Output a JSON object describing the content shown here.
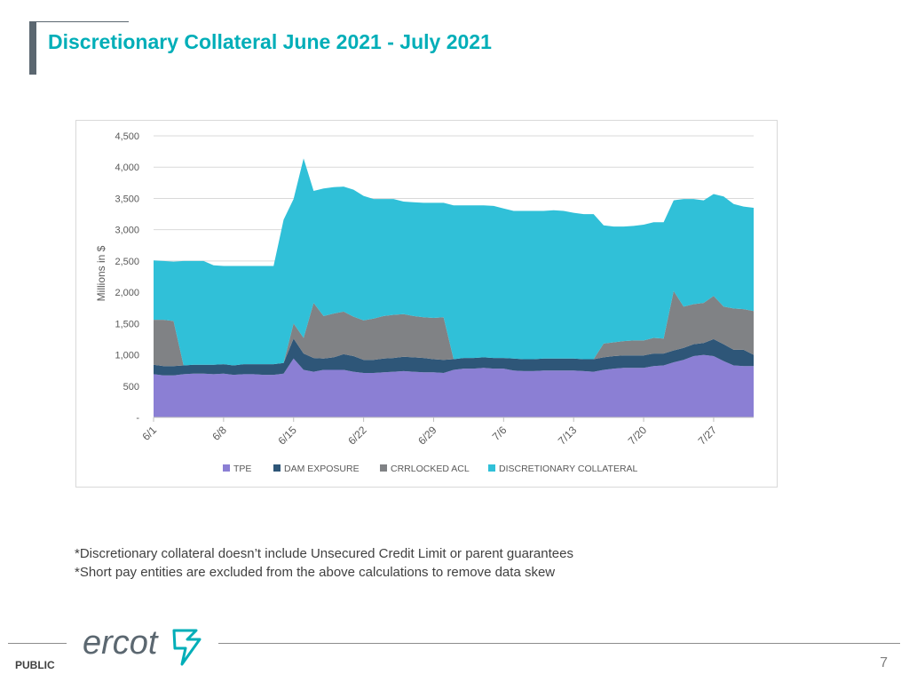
{
  "slide": {
    "title": "Discretionary Collateral June 2021 - July 2021",
    "notes": [
      "*Discretionary collateral doesn’t include Unsecured Credit Limit or parent guarantees",
      "*Short pay entities are excluded from the above calculations to remove data skew"
    ],
    "footer_label": "PUBLIC",
    "page_number": "7",
    "logo_text": "ercot"
  },
  "chart_data": {
    "type": "area",
    "stacked": true,
    "ylabel": "Millions in $",
    "ylim": [
      0,
      4500
    ],
    "yticks": [
      0,
      500,
      1000,
      1500,
      2000,
      2500,
      3000,
      3500,
      4000,
      4500
    ],
    "ytick_labels": [
      "-",
      "500",
      "1,000",
      "1,500",
      "2,000",
      "2,500",
      "3,000",
      "3,500",
      "4,000",
      "4,500"
    ],
    "grid": true,
    "legend_position": "bottom",
    "x": [
      "6/1",
      "6/2",
      "6/3",
      "6/4",
      "6/5",
      "6/6",
      "6/7",
      "6/8",
      "6/9",
      "6/10",
      "6/11",
      "6/12",
      "6/13",
      "6/14",
      "6/15",
      "6/16",
      "6/17",
      "6/18",
      "6/19",
      "6/20",
      "6/21",
      "6/22",
      "6/23",
      "6/24",
      "6/25",
      "6/26",
      "6/27",
      "6/28",
      "6/29",
      "6/30",
      "7/1",
      "7/2",
      "7/3",
      "7/4",
      "7/5",
      "7/6",
      "7/7",
      "7/8",
      "7/9",
      "7/10",
      "7/11",
      "7/12",
      "7/13",
      "7/14",
      "7/15",
      "7/16",
      "7/17",
      "7/18",
      "7/19",
      "7/20",
      "7/21",
      "7/22",
      "7/23",
      "7/24",
      "7/25",
      "7/26",
      "7/27",
      "7/28",
      "7/29",
      "7/30",
      "7/31"
    ],
    "x_tick_labels": [
      "6/1",
      "6/8",
      "6/15",
      "6/22",
      "6/29",
      "7/6",
      "7/13",
      "7/20",
      "7/27"
    ],
    "x_tick_indices": [
      0,
      7,
      14,
      21,
      28,
      35,
      42,
      49,
      56
    ],
    "series": [
      {
        "name": "TPE",
        "color": "#8b7fd4",
        "values": [
          690,
          670,
          670,
          690,
          700,
          700,
          690,
          700,
          680,
          690,
          690,
          680,
          680,
          700,
          940,
          760,
          730,
          760,
          760,
          760,
          730,
          710,
          710,
          720,
          730,
          740,
          730,
          720,
          720,
          710,
          760,
          780,
          780,
          790,
          780,
          780,
          750,
          740,
          740,
          750,
          750,
          750,
          750,
          740,
          730,
          760,
          780,
          790,
          790,
          790,
          820,
          830,
          880,
          920,
          980,
          1000,
          980,
          900,
          830,
          820,
          820
        ]
      },
      {
        "name": "DAM EXPOSURE",
        "color": "#2e5678",
        "values": [
          150,
          150,
          150,
          140,
          140,
          140,
          150,
          150,
          150,
          160,
          160,
          170,
          170,
          170,
          320,
          260,
          220,
          180,
          200,
          250,
          250,
          210,
          210,
          220,
          220,
          230,
          230,
          230,
          210,
          210,
          170,
          170,
          170,
          170,
          170,
          170,
          190,
          190,
          190,
          190,
          190,
          190,
          190,
          190,
          200,
          200,
          200,
          200,
          200,
          200,
          200,
          190,
          190,
          190,
          190,
          190,
          270,
          270,
          250,
          260,
          180
        ]
      },
      {
        "name": "CRRLOCKED ACL",
        "color": "#808285",
        "values": [
          720,
          740,
          720,
          0,
          0,
          0,
          0,
          0,
          0,
          0,
          0,
          0,
          0,
          0,
          240,
          250,
          880,
          680,
          700,
          680,
          630,
          630,
          660,
          680,
          690,
          680,
          660,
          650,
          660,
          680,
          0,
          0,
          0,
          0,
          0,
          0,
          0,
          0,
          0,
          0,
          0,
          0,
          0,
          0,
          0,
          220,
          220,
          230,
          240,
          240,
          250,
          240,
          950,
          660,
          640,
          640,
          690,
          600,
          660,
          650,
          700
        ]
      },
      {
        "name": "DISCRETIONARY COLLATERAL",
        "color": "#30c0d8",
        "values": [
          950,
          940,
          950,
          1670,
          1660,
          1660,
          1590,
          1570,
          1590,
          1570,
          1570,
          1570,
          1570,
          2290,
          1990,
          2870,
          1790,
          2040,
          2020,
          2000,
          2030,
          1990,
          1910,
          1870,
          1850,
          1800,
          1820,
          1830,
          1840,
          1830,
          2460,
          2440,
          2440,
          2430,
          2430,
          2390,
          2360,
          2370,
          2370,
          2360,
          2370,
          2360,
          2330,
          2320,
          2320,
          1890,
          1850,
          1830,
          1830,
          1850,
          1850,
          1860,
          1450,
          1720,
          1680,
          1640,
          1630,
          1760,
          1670,
          1640,
          1650
        ]
      }
    ]
  }
}
